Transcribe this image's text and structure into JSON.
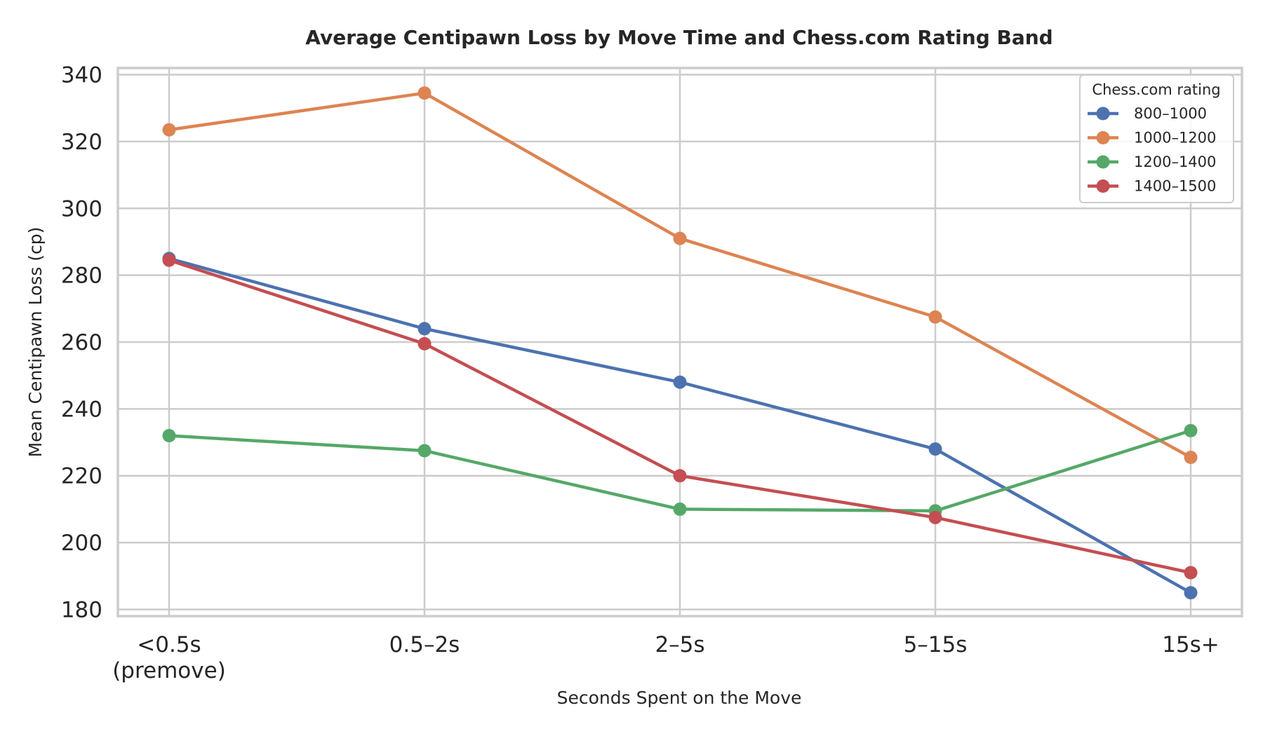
{
  "chart_data": {
    "type": "line",
    "title": "Average Centipawn Loss by Move Time and Chess.com Rating Band",
    "xlabel": "Seconds Spent on the Move",
    "ylabel": "Mean Centipawn Loss (cp)",
    "categories": [
      [
        "<0.5s",
        "(premove)"
      ],
      [
        "0.5–2s"
      ],
      [
        "2–5s"
      ],
      [
        "5–15s"
      ],
      [
        "15s+"
      ]
    ],
    "ylim": [
      178,
      342
    ],
    "yticks": [
      180,
      200,
      220,
      240,
      260,
      280,
      300,
      320,
      340
    ],
    "grid": true,
    "legend": {
      "title": "Chess.com rating",
      "placement": "top-right"
    },
    "series": [
      {
        "name": "800–1000",
        "color": "#4c72b0",
        "values": [
          285,
          264,
          248,
          228,
          185
        ]
      },
      {
        "name": "1000–1200",
        "color": "#dd8452",
        "values": [
          323.5,
          334.5,
          291,
          267.5,
          225.5
        ]
      },
      {
        "name": "1200–1400",
        "color": "#55a868",
        "values": [
          232,
          227.5,
          210,
          209.5,
          233.5
        ]
      },
      {
        "name": "1400–1500",
        "color": "#c44e52",
        "values": [
          284.5,
          259.5,
          220,
          207.5,
          191
        ]
      }
    ]
  }
}
